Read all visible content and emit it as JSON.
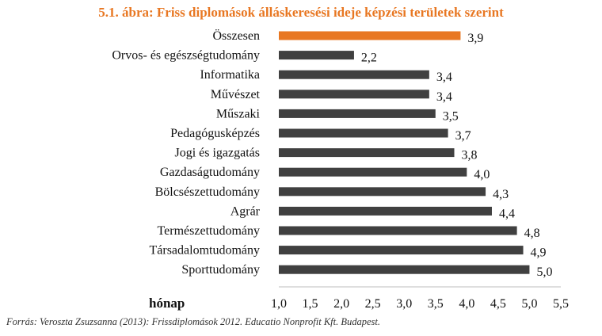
{
  "chart_data": {
    "type": "bar",
    "orientation": "horizontal",
    "title": "5.1. ábra: Friss diplomások álláskeresési ideje képzési területek szerint",
    "xlabel": "hónap",
    "categories": [
      "Összesen",
      "Orvos- és egészségtudomány",
      "Informatika",
      "Művészet",
      "Műszaki",
      "Pedagógusképzés",
      "Jogi és igazgatás",
      "Gazdaságtudomány",
      "Bölcsészettudomány",
      "Agrár",
      "Természettudomány",
      "Társadalomtudomány",
      "Sporttudomány"
    ],
    "values": [
      3.9,
      2.2,
      3.4,
      3.4,
      3.5,
      3.7,
      3.8,
      4.0,
      4.3,
      4.4,
      4.8,
      4.9,
      5.0
    ],
    "value_labels": [
      "3,9",
      "2,2",
      "3,4",
      "3,4",
      "3,5",
      "3,7",
      "3,8",
      "4,0",
      "4,3",
      "4,4",
      "4,8",
      "4,9",
      "5,0"
    ],
    "xlim": [
      1.0,
      5.5
    ],
    "xticks": [
      1.0,
      1.5,
      2.0,
      2.5,
      3.0,
      3.5,
      4.0,
      4.5,
      5.0,
      5.5
    ],
    "xtick_labels": [
      "1,0",
      "1,5",
      "2,0",
      "2,5",
      "3,0",
      "3,5",
      "4,0",
      "4,5",
      "5,0",
      "5,5"
    ],
    "grid": false,
    "colors": {
      "highlight": "#E87722",
      "bar": "#404040",
      "title": "#E87722"
    }
  },
  "source": "Forrás: Veroszta Zsuzsanna (2013): Frissdiplomások 2012. Educatio Nonprofit Kft. Budapest."
}
